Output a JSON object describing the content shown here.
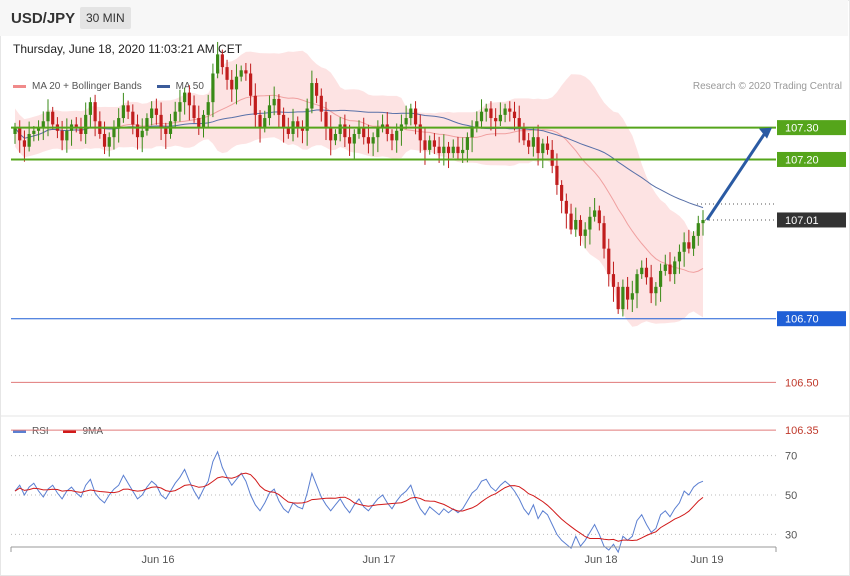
{
  "header": {
    "symbol": "USD/JPY",
    "timeframe": "30 MIN",
    "timestamp": "Thursday, June 18, 2020 11:03:21 AM CET"
  },
  "legend_top": [
    {
      "label": "MA 20 + Bollinger Bands",
      "color": "#f08a8a"
    },
    {
      "label": "MA 50",
      "color": "#3b5b9a"
    }
  ],
  "credit": "Research © 2020 Trading Central",
  "legend_bottom": [
    {
      "label": "RSI",
      "color": "#5b7fd1"
    },
    {
      "label": "9MA",
      "color": "#d11a1a"
    }
  ],
  "colors": {
    "up": "#3a8a17",
    "down": "#c01d1d",
    "resistance": "#55a51b",
    "support": "#1f5fd6",
    "support_faint": "#e07a7a",
    "arrow": "#2a5aa3",
    "current": "#333333"
  },
  "chart_data": [
    {
      "type": "candlestick",
      "title": "",
      "x_ticks": [
        "Jun 16",
        "Jun 17",
        "Jun 18",
        "Jun 19"
      ],
      "ylim": [
        106.25,
        107.55
      ],
      "levels": [
        {
          "label": "107.30",
          "value": 107.3,
          "kind": "resistance"
        },
        {
          "label": "107.20",
          "value": 107.2,
          "kind": "resistance"
        },
        {
          "label": "107.01",
          "value": 107.01,
          "kind": "current"
        },
        {
          "label": "106.70",
          "value": 106.7,
          "kind": "support"
        },
        {
          "label": "106.50",
          "value": 106.5,
          "kind": "support_faint"
        },
        {
          "label": "106.35",
          "value": 106.35,
          "kind": "support_faint"
        }
      ],
      "arrow": {
        "from": 107.01,
        "to": 107.3
      },
      "price_path": [
        107.3,
        107.26,
        107.24,
        107.28,
        107.29,
        107.3,
        107.32,
        107.35,
        107.31,
        107.29,
        107.26,
        107.29,
        107.31,
        107.3,
        107.28,
        107.34,
        107.38,
        107.32,
        107.28,
        107.24,
        107.27,
        107.3,
        107.33,
        107.37,
        107.35,
        107.31,
        107.27,
        107.29,
        107.33,
        107.36,
        107.34,
        107.3,
        107.28,
        107.32,
        107.35,
        107.38,
        107.41,
        107.37,
        107.33,
        107.3,
        107.34,
        107.38,
        107.47,
        107.53,
        107.49,
        107.45,
        107.42,
        107.46,
        107.48,
        107.47,
        107.4,
        107.34,
        107.3,
        107.33,
        107.37,
        107.39,
        107.34,
        107.3,
        107.28,
        107.32,
        107.3,
        107.29,
        107.36,
        107.44,
        107.4,
        107.35,
        107.3,
        107.26,
        107.28,
        107.31,
        107.27,
        107.25,
        107.28,
        107.3,
        107.27,
        107.25,
        107.27,
        107.3,
        107.31,
        107.28,
        107.26,
        107.29,
        107.31,
        107.33,
        107.36,
        107.31,
        107.26,
        107.23,
        107.26,
        107.24,
        107.22,
        107.24,
        107.22,
        107.24,
        107.22,
        107.23,
        107.27,
        107.3,
        107.32,
        107.35,
        107.36,
        107.33,
        107.32,
        107.34,
        107.36,
        107.35,
        107.33,
        107.3,
        107.26,
        107.24,
        107.27,
        107.22,
        107.25,
        107.23,
        107.18,
        107.12,
        107.07,
        107.03,
        106.98,
        107.01,
        106.96,
        106.98,
        107.02,
        107.04,
        107.0,
        106.92,
        106.84,
        106.8,
        106.73,
        106.8,
        106.76,
        106.78,
        106.84,
        106.86,
        106.83,
        106.78,
        106.8,
        106.85,
        106.87,
        106.84,
        106.88,
        106.91,
        106.94,
        106.92,
        106.96,
        107.0,
        107.01
      ]
    },
    {
      "type": "line",
      "title": "",
      "series": [
        {
          "name": "RSI"
        },
        {
          "name": "9MA"
        }
      ],
      "yticks": [
        30,
        50,
        70
      ],
      "ylim": [
        18,
        82
      ],
      "rsi": [
        52,
        55,
        50,
        54,
        56,
        52,
        49,
        53,
        55,
        51,
        48,
        52,
        54,
        51,
        49,
        55,
        58,
        51,
        48,
        46,
        50,
        53,
        55,
        60,
        56,
        52,
        48,
        50,
        54,
        57,
        55,
        50,
        48,
        52,
        56,
        59,
        63,
        57,
        52,
        48,
        53,
        57,
        67,
        72,
        64,
        59,
        55,
        58,
        61,
        57,
        50,
        45,
        42,
        46,
        51,
        53,
        47,
        43,
        41,
        46,
        44,
        43,
        51,
        61,
        55,
        49,
        45,
        42,
        45,
        48,
        44,
        41,
        45,
        48,
        44,
        42,
        45,
        48,
        50,
        46,
        43,
        47,
        50,
        52,
        55,
        48,
        43,
        40,
        44,
        42,
        40,
        43,
        41,
        43,
        41,
        43,
        47,
        51,
        53,
        57,
        58,
        54,
        52,
        55,
        57,
        55,
        52,
        48,
        43,
        40,
        45,
        38,
        42,
        40,
        35,
        30,
        27,
        25,
        23,
        29,
        24,
        27,
        31,
        35,
        30,
        24,
        22,
        25,
        21,
        29,
        27,
        29,
        37,
        40,
        35,
        31,
        33,
        40,
        42,
        39,
        43,
        46,
        52,
        50,
        54,
        56,
        57
      ]
    }
  ]
}
